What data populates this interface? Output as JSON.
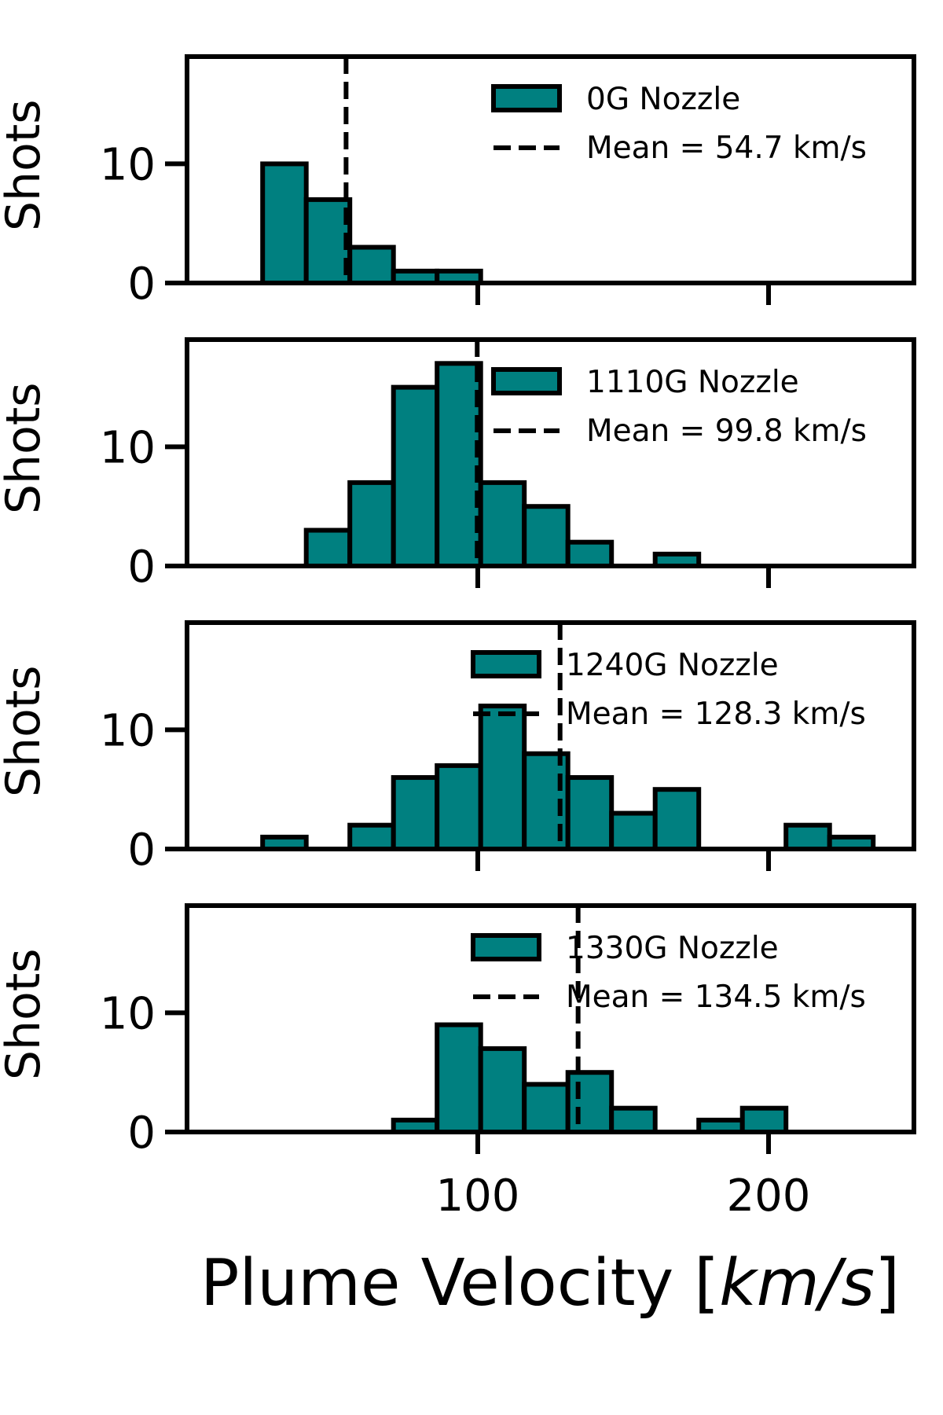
{
  "chart_data": {
    "type": "bar",
    "xlabel": "Plume Velocity [km/s]",
    "xlabel_plain": "Plume Velocity [",
    "xlabel_italic": "km/s",
    "xlabel_close": "]",
    "ylabel": "Shots",
    "xlim": [
      0,
      250
    ],
    "ylim": [
      0,
      19
    ],
    "xticks": [
      100,
      200
    ],
    "yticks": [
      0,
      10
    ],
    "bar_color": "#008080",
    "edge_color": "#000000",
    "panels": [
      {
        "name": "0G Nozzle",
        "mean": 54.7,
        "mean_label": "Mean = 54.7 km/s",
        "bins": [
          {
            "x0": 26,
            "x1": 41,
            "count": 10
          },
          {
            "x0": 41,
            "x1": 56,
            "count": 7
          },
          {
            "x0": 56,
            "x1": 71,
            "count": 3
          },
          {
            "x0": 71,
            "x1": 86,
            "count": 1
          },
          {
            "x0": 86,
            "x1": 101,
            "count": 1
          }
        ]
      },
      {
        "name": "1110G Nozzle",
        "mean": 99.8,
        "mean_label": "Mean = 99.8 km/s",
        "bins": [
          {
            "x0": 41,
            "x1": 56,
            "count": 3
          },
          {
            "x0": 56,
            "x1": 71,
            "count": 7
          },
          {
            "x0": 71,
            "x1": 86,
            "count": 15
          },
          {
            "x0": 86,
            "x1": 101,
            "count": 17
          },
          {
            "x0": 101,
            "x1": 116,
            "count": 7
          },
          {
            "x0": 116,
            "x1": 131,
            "count": 5
          },
          {
            "x0": 131,
            "x1": 146,
            "count": 2
          },
          {
            "x0": 161,
            "x1": 176,
            "count": 1
          }
        ]
      },
      {
        "name": "1240G Nozzle",
        "mean": 128.3,
        "mean_label": "Mean = 128.3 km/s",
        "bins": [
          {
            "x0": 26,
            "x1": 41,
            "count": 1
          },
          {
            "x0": 56,
            "x1": 71,
            "count": 2
          },
          {
            "x0": 71,
            "x1": 86,
            "count": 6
          },
          {
            "x0": 86,
            "x1": 101,
            "count": 7
          },
          {
            "x0": 101,
            "x1": 116,
            "count": 12
          },
          {
            "x0": 116,
            "x1": 131,
            "count": 8
          },
          {
            "x0": 131,
            "x1": 146,
            "count": 6
          },
          {
            "x0": 146,
            "x1": 161,
            "count": 3
          },
          {
            "x0": 161,
            "x1": 176,
            "count": 5
          },
          {
            "x0": 206,
            "x1": 221,
            "count": 2
          },
          {
            "x0": 221,
            "x1": 236,
            "count": 1
          }
        ]
      },
      {
        "name": "1330G Nozzle",
        "mean": 134.5,
        "mean_label": "Mean = 134.5 km/s",
        "bins": [
          {
            "x0": 71,
            "x1": 86,
            "count": 1
          },
          {
            "x0": 86,
            "x1": 101,
            "count": 9
          },
          {
            "x0": 101,
            "x1": 116,
            "count": 7
          },
          {
            "x0": 116,
            "x1": 131,
            "count": 4
          },
          {
            "x0": 131,
            "x1": 146,
            "count": 5
          },
          {
            "x0": 146,
            "x1": 161,
            "count": 2
          },
          {
            "x0": 176,
            "x1": 191,
            "count": 1
          },
          {
            "x0": 191,
            "x1": 206,
            "count": 2
          }
        ]
      }
    ]
  }
}
